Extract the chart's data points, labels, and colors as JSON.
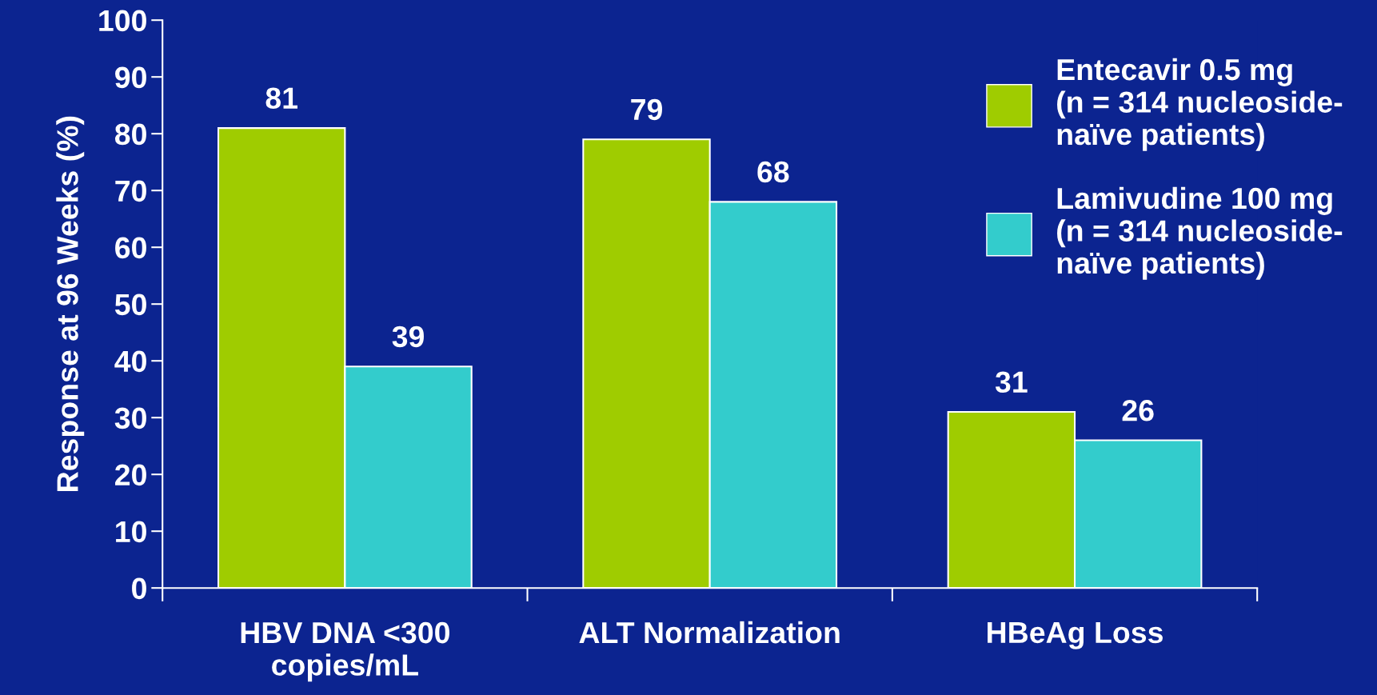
{
  "chart_data": {
    "type": "bar",
    "ylabel": "Response at 96 Weeks (%)",
    "categories": [
      "HBV DNA <300\ncopies/mL",
      "ALT Normalization",
      "HBeAg Loss"
    ],
    "series": [
      {
        "name": "Entecavir 0.5 mg\n(n = 314 nucleoside-\nnaïve patients)",
        "color": "#9fcc00",
        "values": [
          81,
          79,
          31
        ]
      },
      {
        "name": "Lamivudine 100 mg\n(n = 314 nucleoside-\nnaïve patients)",
        "color": "#33cccc",
        "values": [
          39,
          68,
          26
        ]
      }
    ],
    "ylim": [
      0,
      100
    ],
    "yticks": [
      0,
      10,
      20,
      30,
      40,
      50,
      60,
      70,
      80,
      90,
      100
    ],
    "data_labels": true,
    "legend": "top right",
    "grid": false
  }
}
